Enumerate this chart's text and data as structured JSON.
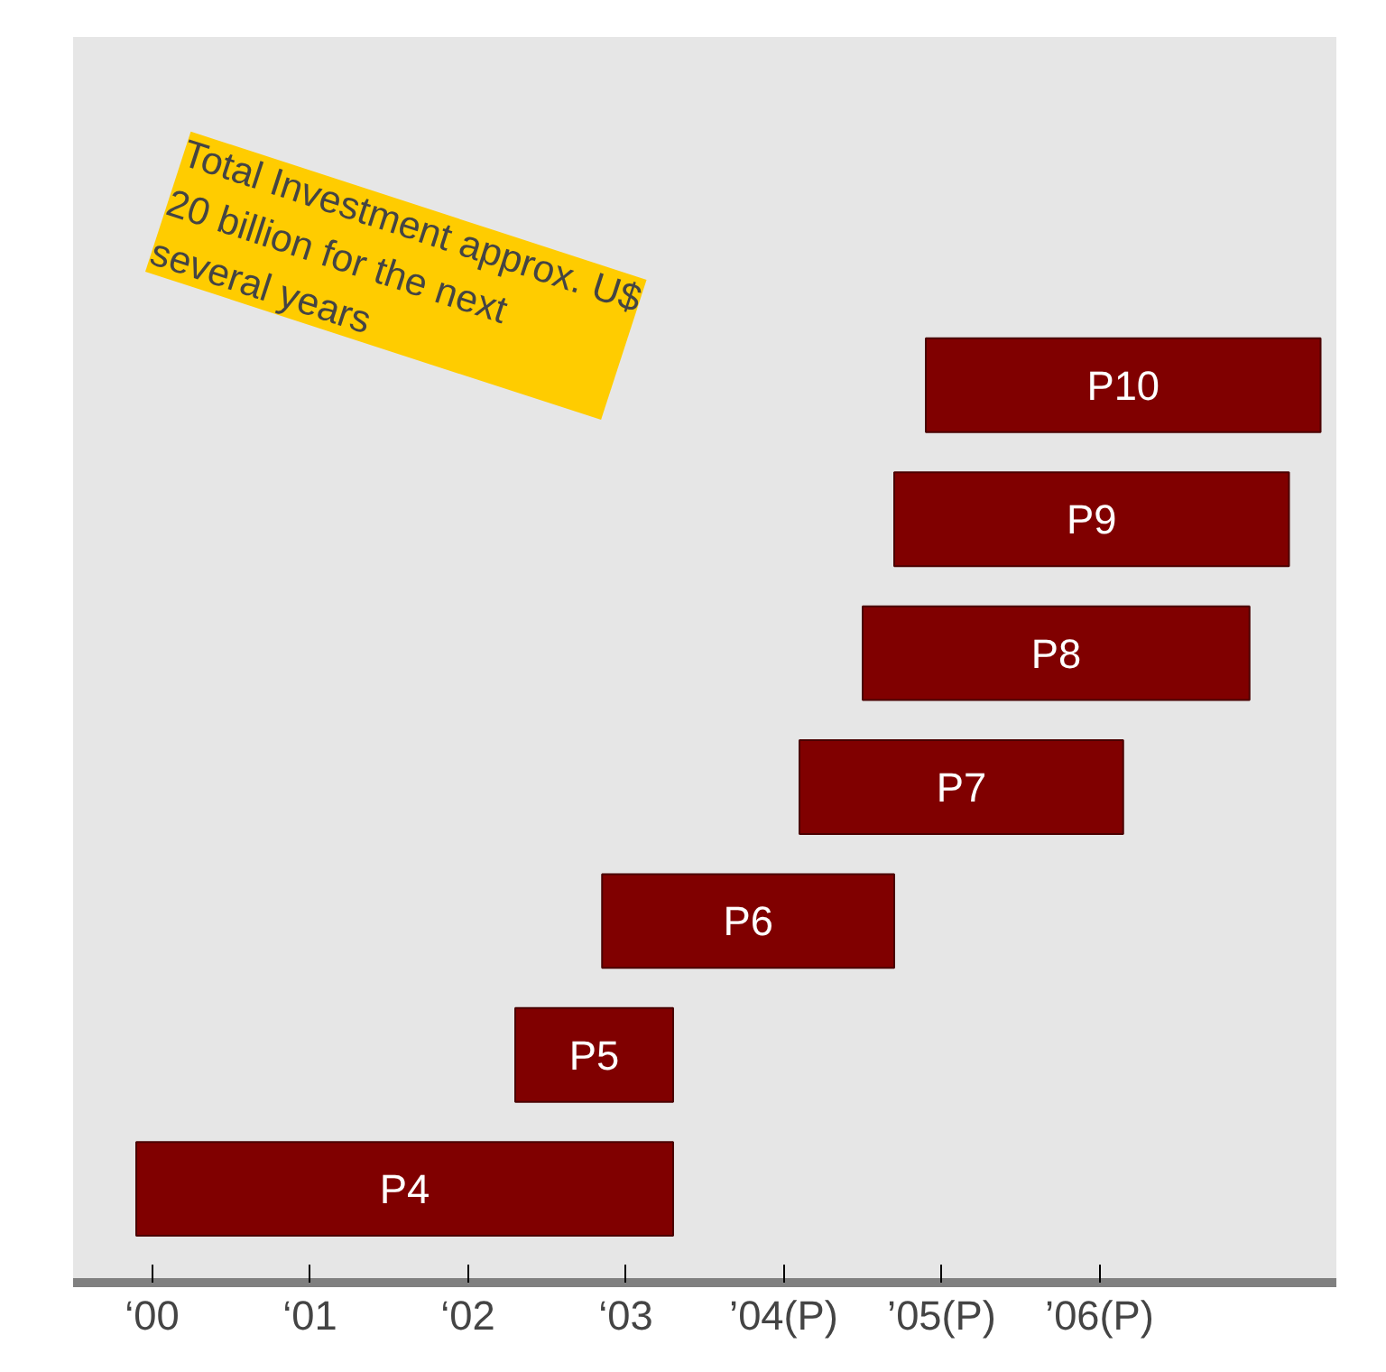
{
  "chart_data": {
    "type": "bar",
    "orientation": "horizontal",
    "categories": [
      "P10",
      "P9",
      "P8",
      "P7",
      "P6",
      "P5",
      "P4"
    ],
    "base": [
      4.9,
      4.7,
      4.5,
      4.1,
      2.85,
      2.3,
      -0.1
    ],
    "values": [
      2.5,
      2.5,
      2.45,
      2.05,
      1.85,
      1.0,
      3.4
    ],
    "color": "#800000",
    "xlim": [
      -0.5,
      7.5
    ],
    "xticks": [
      {
        "value": 0,
        "label": "‘00"
      },
      {
        "value": 1,
        "label": "‘01"
      },
      {
        "value": 2,
        "label": "‘02"
      },
      {
        "value": 3,
        "label": "‘03"
      },
      {
        "value": 4,
        "label": "’04(P)"
      },
      {
        "value": 5,
        "label": "’05(P)"
      },
      {
        "value": 6,
        "label": "’06(P)"
      }
    ],
    "tick_labels": "x",
    "grid": false,
    "annotations": [
      "Total Investment approx. U$ 20 billion for the next several years"
    ]
  }
}
